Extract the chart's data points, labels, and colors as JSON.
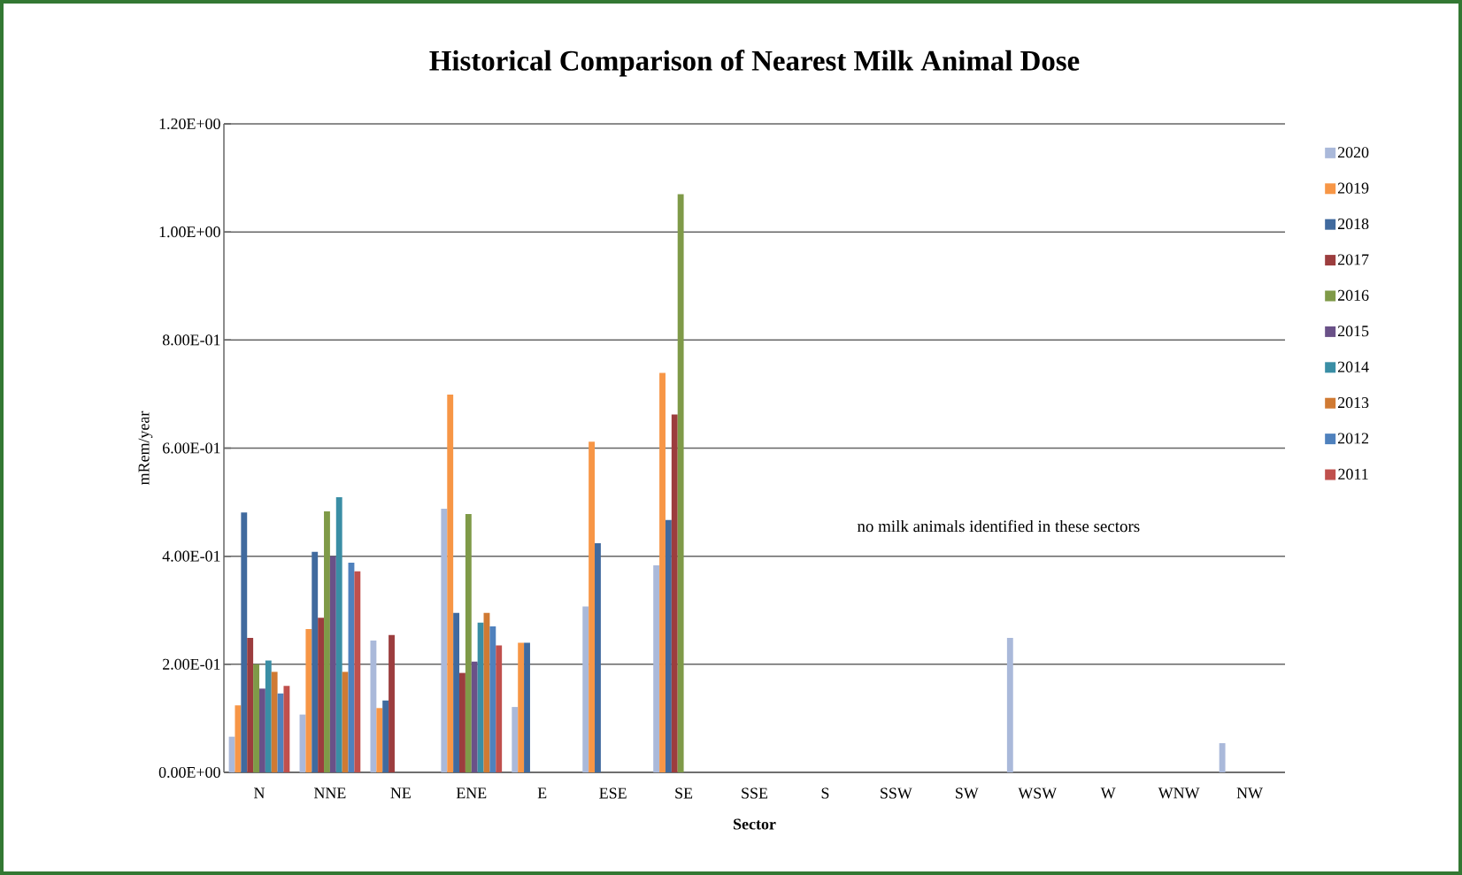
{
  "chart_data": {
    "type": "bar",
    "title": "Historical Comparison of Nearest Milk Animal Dose",
    "xlabel": "Sector",
    "ylabel": "mRem/year",
    "categories": [
      "N",
      "NNE",
      "NE",
      "ENE",
      "E",
      "ESE",
      "SE",
      "SSE",
      "S",
      "SSW",
      "SW",
      "WSW",
      "W",
      "WNW",
      "NW"
    ],
    "series": [
      {
        "name": "2020",
        "color": "#aab9da",
        "values": [
          0.066,
          0.107,
          0.244,
          0.488,
          0.121,
          0.307,
          0.383,
          null,
          null,
          null,
          null,
          0.249,
          null,
          null,
          0.054
        ]
      },
      {
        "name": "2019",
        "color": "#f79646",
        "values": [
          0.124,
          0.265,
          0.119,
          0.699,
          0.24,
          0.612,
          0.739,
          null,
          null,
          null,
          null,
          null,
          null,
          null,
          null
        ]
      },
      {
        "name": "2018",
        "color": "#406a9e",
        "values": [
          0.481,
          0.408,
          0.133,
          0.295,
          0.24,
          0.424,
          0.467,
          null,
          null,
          null,
          null,
          null,
          null,
          null,
          null
        ]
      },
      {
        "name": "2017",
        "color": "#9c3d3e",
        "values": [
          0.249,
          0.286,
          0.254,
          0.184,
          null,
          null,
          0.662,
          null,
          null,
          null,
          null,
          null,
          null,
          null,
          null
        ]
      },
      {
        "name": "2016",
        "color": "#7f9a48",
        "values": [
          0.2,
          0.483,
          null,
          0.478,
          null,
          null,
          1.07,
          null,
          null,
          null,
          null,
          null,
          null,
          null,
          null
        ]
      },
      {
        "name": "2015",
        "color": "#6a5188",
        "values": [
          0.155,
          0.4,
          null,
          0.205,
          null,
          null,
          null,
          null,
          null,
          null,
          null,
          null,
          null,
          null,
          null
        ]
      },
      {
        "name": "2014",
        "color": "#3a8ea5",
        "values": [
          0.207,
          0.509,
          null,
          0.277,
          null,
          null,
          null,
          null,
          null,
          null,
          null,
          null,
          null,
          null,
          null
        ]
      },
      {
        "name": "2013",
        "color": "#d07a33",
        "values": [
          0.186,
          0.186,
          null,
          0.295,
          null,
          null,
          null,
          null,
          null,
          null,
          null,
          null,
          null,
          null,
          null
        ]
      },
      {
        "name": "2012",
        "color": "#4f81bd",
        "values": [
          0.146,
          0.388,
          null,
          0.27,
          null,
          null,
          null,
          null,
          null,
          null,
          null,
          null,
          null,
          null,
          null
        ]
      },
      {
        "name": "2011",
        "color": "#c0504d",
        "values": [
          0.16,
          0.372,
          null,
          0.235,
          null,
          null,
          null,
          null,
          null,
          null,
          null,
          null,
          null,
          null,
          null
        ]
      }
    ],
    "ylim": [
      0,
      1.2
    ],
    "yticks": [
      {
        "value": 0,
        "label": "0.00E+00"
      },
      {
        "value": 0.2,
        "label": "2.00E-01"
      },
      {
        "value": 0.4,
        "label": "4.00E-01"
      },
      {
        "value": 0.6,
        "label": "6.00E-01"
      },
      {
        "value": 0.8,
        "label": "8.00E-01"
      },
      {
        "value": 1.0,
        "label": "1.00E+00"
      },
      {
        "value": 1.2,
        "label": "1.20E+00"
      }
    ],
    "grid": "y",
    "legend": "right",
    "annotations": [
      "no milk animals identified in these sectors"
    ]
  }
}
